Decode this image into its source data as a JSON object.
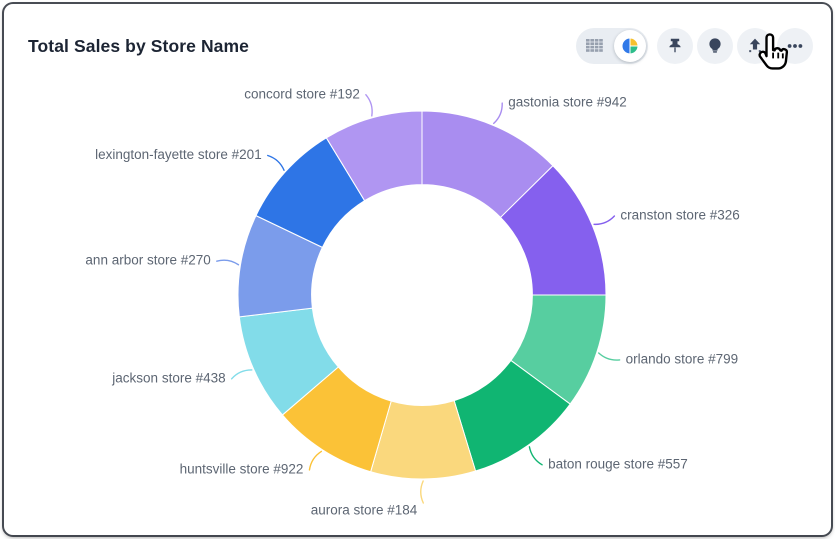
{
  "header": {
    "title": "Total Sales by Store Name",
    "toolbar": {
      "view_toggle": {
        "options": [
          "table-view",
          "chart-view"
        ],
        "selected": "chart-view",
        "icons": [
          "table-grid-icon",
          "pie-chart-icon"
        ]
      },
      "buttons": [
        {
          "name": "pin",
          "icon": "pushpin-icon"
        },
        {
          "name": "insights",
          "icon": "lightbulb-icon"
        },
        {
          "name": "share",
          "icon": "arrow-up-icon"
        },
        {
          "name": "more",
          "icon": "ellipsis-icon"
        }
      ]
    }
  },
  "cursor": {
    "type": "hand-pointer",
    "over": "share-button"
  },
  "colors": {
    "title_text": "#1c2433",
    "label_text": "#5d6673",
    "icon_dark": "#39455c",
    "button_bg": "#eef1f5",
    "toggle_bg": "#e9edf2"
  },
  "chart_data": {
    "type": "donut",
    "title": "Total Sales by Store Name",
    "value_unit": "percent (estimated from segment angles; no numeric values shown)",
    "start_angle_deg": 0,
    "direction": "clockwise",
    "inner_radius_ratio": 0.6,
    "legend_position": "callout-labels",
    "segments": [
      {
        "label": "gastonia store #942",
        "value": 12.6,
        "color": "#a98df0"
      },
      {
        "label": "cranston store #326",
        "value": 12.4,
        "color": "#8560ee"
      },
      {
        "label": "orlando store #799",
        "value": 10.1,
        "color": "#57cea0"
      },
      {
        "label": "baton rouge store #557",
        "value": 10.2,
        "color": "#10b572"
      },
      {
        "label": "aurora store #184",
        "value": 9.2,
        "color": "#fad87d"
      },
      {
        "label": "huntsville store #922",
        "value": 9.2,
        "color": "#fbc237"
      },
      {
        "label": "jackson store #438",
        "value": 9.4,
        "color": "#82dce9"
      },
      {
        "label": "ann arbor store #270",
        "value": 9.0,
        "color": "#7b9ceb"
      },
      {
        "label": "lexington-fayette store #201",
        "value": 9.2,
        "color": "#2e75e6"
      },
      {
        "label": "concord store #192",
        "value": 8.7,
        "color": "#b096f2"
      }
    ]
  }
}
